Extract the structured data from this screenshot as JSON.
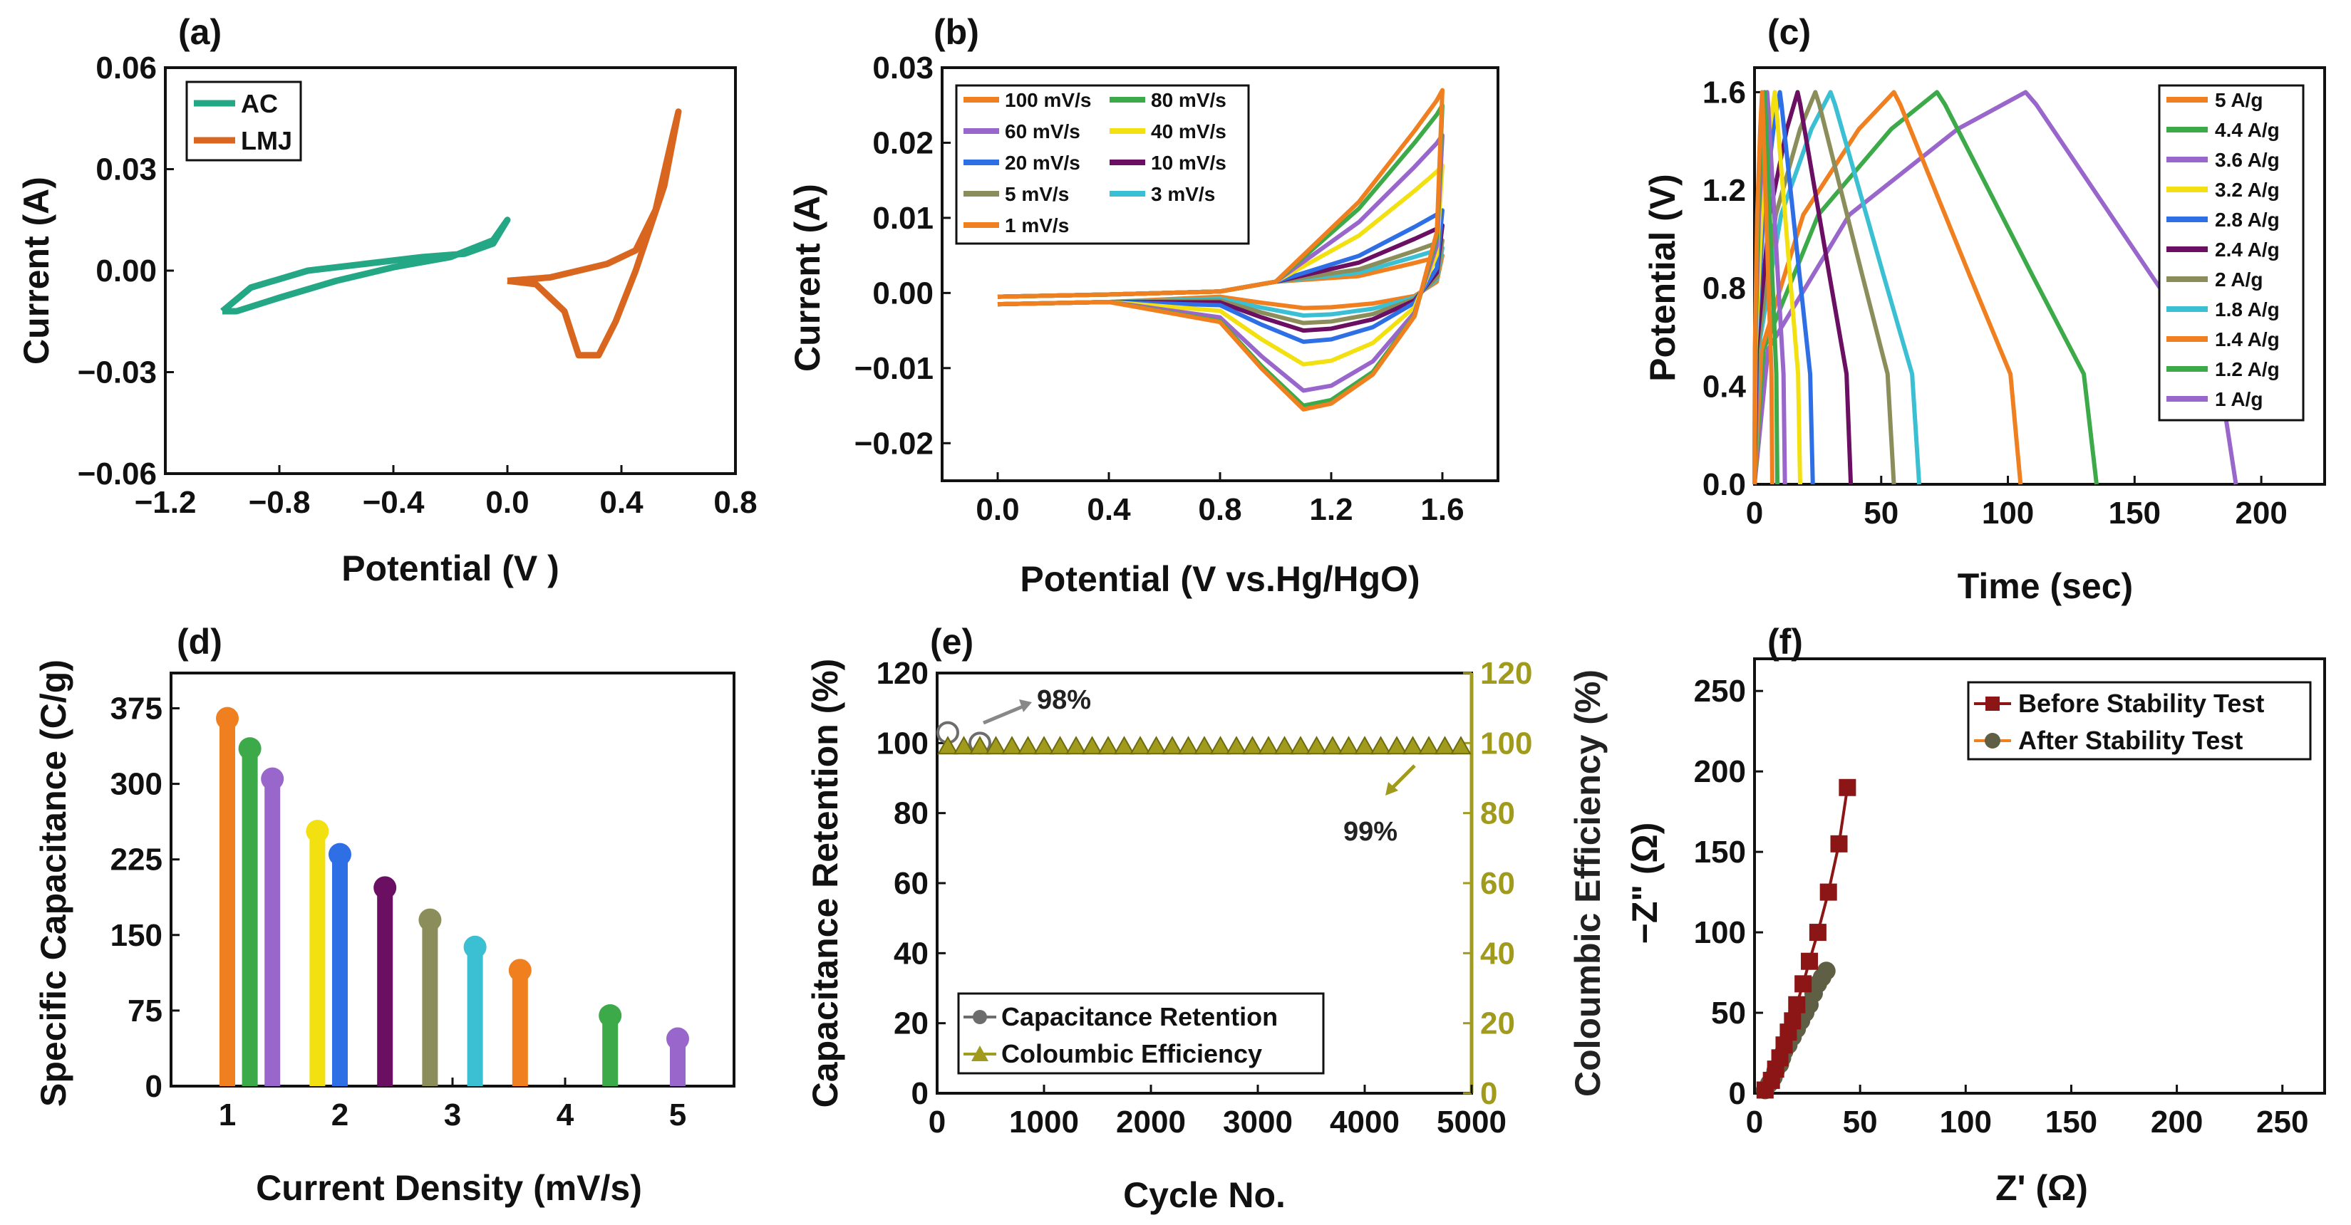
{
  "colors": {
    "orange": "#f07f1f",
    "green": "#3daa4a",
    "purple": "#9966cc",
    "yellow": "#f2e010",
    "blue": "#2f6fe6",
    "dark_purple": "#6b0f63",
    "olive": "#8b8d5a",
    "cyan": "#3bbfd2",
    "teal": "#23a784",
    "lmj": "#d9661e",
    "grey": "#6d6d6d",
    "olive_yellow": "#a19b1d",
    "dark_red": "#8c1515",
    "dark_olive": "#5f5f45"
  },
  "chart_data": [
    {
      "panel": "(a)",
      "type": "line",
      "xlabel": "Potential (V )",
      "ylabel": "Current (A)",
      "xlim": [
        -1.2,
        0.8
      ],
      "ylim": [
        -0.06,
        0.06
      ],
      "xticks": [
        "−1.2",
        "−0.8",
        "−0.4",
        "0.0",
        "0.4",
        "0.8"
      ],
      "yticks": [
        "0.06",
        "0.03",
        "0.00",
        "−0.03",
        "−0.06"
      ],
      "legend": [
        "AC",
        "LMJ"
      ],
      "series": [
        {
          "name": "AC",
          "color": "#23a784",
          "x": [
            -1.0,
            -0.9,
            -0.7,
            -0.5,
            -0.3,
            -0.15,
            -0.05,
            0.0,
            -0.05,
            -0.2,
            -0.4,
            -0.6,
            -0.8,
            -0.95,
            -1.0
          ],
          "y": [
            -0.012,
            -0.005,
            0.0,
            0.002,
            0.004,
            0.005,
            0.008,
            0.015,
            0.009,
            0.004,
            0.001,
            -0.003,
            -0.008,
            -0.012,
            -0.012
          ]
        },
        {
          "name": "LMJ",
          "color": "#d9661e",
          "x": [
            0.0,
            0.15,
            0.25,
            0.35,
            0.45,
            0.52,
            0.58,
            0.6,
            0.55,
            0.45,
            0.38,
            0.32,
            0.25,
            0.2,
            0.1,
            0.0
          ],
          "y": [
            -0.003,
            -0.002,
            0.0,
            0.002,
            0.006,
            0.018,
            0.04,
            0.047,
            0.025,
            0.0,
            -0.015,
            -0.025,
            -0.025,
            -0.012,
            -0.004,
            -0.003
          ]
        }
      ]
    },
    {
      "panel": "(b)",
      "type": "line",
      "xlabel": "Potential (V vs.Hg/HgO)",
      "ylabel": "Current (A)",
      "xlim": [
        -0.2,
        1.8
      ],
      "ylim": [
        -0.025,
        0.03
      ],
      "xticks": [
        "0.0",
        "0.4",
        "0.8",
        "1.2",
        "1.6"
      ],
      "yticks": [
        "0.03",
        "0.02",
        "0.01",
        "0.00",
        "−0.01",
        "−0.02"
      ],
      "legend": [
        "100 mV/s",
        "80 mV/s",
        "60 mV/s",
        "40 mV/s",
        "20 mV/s",
        "10 mV/s",
        "5 mV/s",
        "3 mV/s",
        "1 mV/s"
      ],
      "series": [
        {
          "name": "100 mV/s",
          "color": "#f07f1f",
          "peak_anodic": 0.027,
          "peak_cathodic": -0.0155
        },
        {
          "name": "80 mV/s",
          "color": "#3daa4a",
          "peak_anodic": 0.025,
          "peak_cathodic": -0.015
        },
        {
          "name": "60 mV/s",
          "color": "#9966cc",
          "peak_anodic": 0.021,
          "peak_cathodic": -0.013
        },
        {
          "name": "40 mV/s",
          "color": "#f2e010",
          "peak_anodic": 0.017,
          "peak_cathodic": -0.0095
        },
        {
          "name": "20 mV/s",
          "color": "#2f6fe6",
          "peak_anodic": 0.011,
          "peak_cathodic": -0.0065
        },
        {
          "name": "10 mV/s",
          "color": "#6b0f63",
          "peak_anodic": 0.009,
          "peak_cathodic": -0.005
        },
        {
          "name": "5 mV/s",
          "color": "#8b8d5a",
          "peak_anodic": 0.007,
          "peak_cathodic": -0.004
        },
        {
          "name": "3 mV/s",
          "color": "#3bbfd2",
          "peak_anodic": 0.006,
          "peak_cathodic": -0.003
        },
        {
          "name": "1 mV/s",
          "color": "#f07f1f",
          "peak_anodic": 0.005,
          "peak_cathodic": -0.002
        }
      ]
    },
    {
      "panel": "(c)",
      "type": "line",
      "xlabel": "Time (sec)",
      "ylabel": "Potential (V)",
      "xlim": [
        0,
        225
      ],
      "ylim": [
        0,
        1.7
      ],
      "xticks": [
        "0",
        "50",
        "100",
        "150",
        "200"
      ],
      "yticks": [
        "1.6",
        "1.2",
        "0.8",
        "0.4",
        "0.0"
      ],
      "legend": [
        "5 A/g",
        "4.4 A/g",
        "3.6 A/g",
        "3.2 A/g",
        "2.8 A/g",
        "2.4 A/g",
        "2 A/g",
        "1.8 A/g",
        "1.4 A/g",
        "1.2 A/g",
        "1 A/g"
      ],
      "series": [
        {
          "name": "5 A/g",
          "color": "#f07f1f",
          "charge_end": 3,
          "discharge_end": 7
        },
        {
          "name": "4.4 A/g",
          "color": "#3daa4a",
          "charge_end": 4,
          "discharge_end": 9
        },
        {
          "name": "3.6 A/g",
          "color": "#9966cc",
          "charge_end": 5,
          "discharge_end": 12
        },
        {
          "name": "3.2 A/g",
          "color": "#f2e010",
          "charge_end": 8,
          "discharge_end": 18
        },
        {
          "name": "2.8 A/g",
          "color": "#2f6fe6",
          "charge_end": 10,
          "discharge_end": 23
        },
        {
          "name": "2.4 A/g",
          "color": "#6b0f63",
          "charge_end": 17,
          "discharge_end": 38
        },
        {
          "name": "2 A/g",
          "color": "#8b8d5a",
          "charge_end": 24,
          "discharge_end": 55
        },
        {
          "name": "1.8 A/g",
          "color": "#3bbfd2",
          "charge_end": 30,
          "discharge_end": 65
        },
        {
          "name": "1.4 A/g",
          "color": "#f07f1f",
          "charge_end": 55,
          "discharge_end": 105
        },
        {
          "name": "1.2 A/g",
          "color": "#3daa4a",
          "charge_end": 72,
          "discharge_end": 135
        },
        {
          "name": "1 A/g",
          "color": "#9966cc",
          "charge_end": 107,
          "discharge_end": 190
        }
      ]
    },
    {
      "panel": "(d)",
      "type": "bar",
      "xlabel": "Current Density (mV/s)",
      "ylabel": "Specific Capacitance (C/g)",
      "xlim": [
        0.5,
        5.5
      ],
      "ylim": [
        0,
        410
      ],
      "xticks": [
        "1",
        "2",
        "3",
        "4",
        "5"
      ],
      "yticks": [
        "375",
        "300",
        "225",
        "150",
        "75",
        "0"
      ],
      "x": [
        1,
        1.2,
        1.4,
        1.8,
        2,
        2.4,
        2.8,
        3.2,
        3.6,
        4.4,
        5
      ],
      "values": [
        365,
        335,
        305,
        253,
        230,
        197,
        165,
        138,
        115,
        70,
        47
      ]
    },
    {
      "panel": "(e)",
      "type": "scatter",
      "xlabel": "Cycle No.",
      "ylabel": "Capacitance Retention (%)",
      "y2label": "Coloumbic Efficiency (%)",
      "xlim": [
        0,
        5000
      ],
      "ylim": [
        0,
        120
      ],
      "y2lim": [
        0,
        120
      ],
      "xticks": [
        "0",
        "1000",
        "2000",
        "3000",
        "4000",
        "5000"
      ],
      "yticks": [
        "120",
        "100",
        "80",
        "60",
        "40",
        "20",
        "0"
      ],
      "y2ticks": [
        "120",
        "100",
        "80",
        "60",
        "40",
        "20",
        "0"
      ],
      "legend": [
        "Capacitance Retention",
        "Coloumbic Efficiency"
      ],
      "annotations": [
        "98%",
        "99%"
      ],
      "retention_x": [
        100,
        400
      ],
      "retention_y": [
        103,
        100
      ],
      "efficiency_start": 100,
      "efficiency_step": 150,
      "efficiency_y": 99
    },
    {
      "panel": "(f)",
      "type": "scatter",
      "xlabel": "Z' (Ω)",
      "ylabel": "−Z\" (Ω)",
      "xlim": [
        0,
        270
      ],
      "ylim": [
        0,
        270
      ],
      "xticks": [
        "0",
        "50",
        "100",
        "150",
        "200",
        "250"
      ],
      "yticks": [
        "250",
        "200",
        "150",
        "100",
        "50",
        "0"
      ],
      "legend": [
        "Before Stability Test",
        "After Stability Test"
      ],
      "series": [
        {
          "name": "Before Stability Test",
          "color": "#8c1515",
          "x": [
            5,
            8,
            10,
            12,
            14,
            16,
            18,
            20,
            23,
            26,
            30,
            35,
            40,
            44
          ],
          "y": [
            2,
            8,
            15,
            22,
            30,
            38,
            45,
            55,
            68,
            82,
            100,
            125,
            155,
            190
          ]
        },
        {
          "name": "After Stability Test",
          "color": "#5f5f45",
          "x": [
            5,
            7,
            9,
            10,
            12,
            13,
            14,
            16,
            18,
            20,
            22,
            24,
            26,
            28,
            30,
            32,
            34
          ],
          "y": [
            2,
            6,
            10,
            14,
            18,
            22,
            26,
            30,
            35,
            40,
            45,
            50,
            55,
            62,
            68,
            72,
            76
          ]
        }
      ]
    }
  ]
}
